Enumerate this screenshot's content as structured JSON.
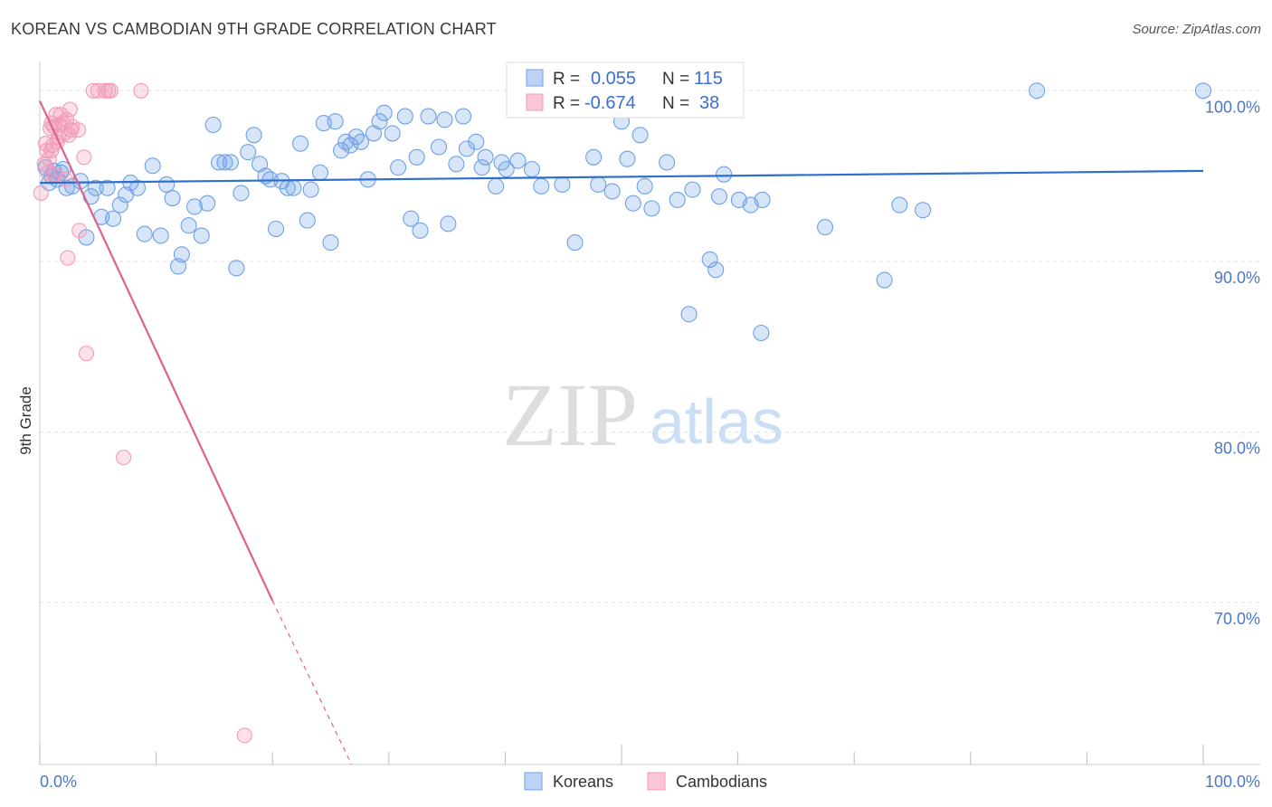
{
  "header": {
    "title": "KOREAN VS CAMBODIAN 9TH GRADE CORRELATION CHART",
    "source": "Source: ZipAtlas.com"
  },
  "watermark": {
    "part1": "ZIP",
    "part2": "atlas"
  },
  "colors": {
    "korean": "#6fa0e6",
    "korean_line": "#2f6fcc",
    "cambodian": "#f29ab8",
    "cambodian_line": "#e0608e",
    "tick_text": "#4a78c8",
    "grid": "#e3e3e3"
  },
  "stats": {
    "rows": [
      {
        "r_label": "R =",
        "r_value": "0.055",
        "n_label": "N =",
        "n_value": "115"
      },
      {
        "r_label": "R =",
        "r_value": "-0.674",
        "n_label": "N =",
        "n_value": "38"
      }
    ]
  },
  "chart_data": {
    "type": "scatter",
    "xlabel": "",
    "ylabel": "9th Grade",
    "xlim": [
      0,
      100
    ],
    "ylim": [
      60.5,
      101.5
    ],
    "x_tick_labels": [
      "0.0%",
      "100.0%"
    ],
    "y_ticks": [
      70,
      80,
      90,
      100
    ],
    "y_tick_labels": [
      "70.0%",
      "80.0%",
      "90.0%",
      "100.0%"
    ],
    "grid": true,
    "legend": {
      "position": "bottom-center",
      "entries": [
        "Koreans",
        "Cambodians"
      ]
    },
    "series": [
      {
        "name": "Koreans",
        "r": 0.055,
        "n": 115,
        "trend": {
          "x": [
            0,
            100
          ],
          "y": [
            94.6,
            95.3
          ]
        },
        "points": [
          [
            0.5,
            95.5
          ],
          [
            0.8,
            94.6
          ],
          [
            1.0,
            95.0
          ],
          [
            1.2,
            95.3
          ],
          [
            1.5,
            94.8
          ],
          [
            1.8,
            95.2
          ],
          [
            2.0,
            95.4
          ],
          [
            2.3,
            94.3
          ],
          [
            2.8,
            94.4
          ],
          [
            3.5,
            94.7
          ],
          [
            4.0,
            91.4
          ],
          [
            4.4,
            93.8
          ],
          [
            4.8,
            94.3
          ],
          [
            5.3,
            92.6
          ],
          [
            5.8,
            94.3
          ],
          [
            6.3,
            92.5
          ],
          [
            6.9,
            93.3
          ],
          [
            7.4,
            93.9
          ],
          [
            7.8,
            94.6
          ],
          [
            8.4,
            94.3
          ],
          [
            9.0,
            91.6
          ],
          [
            9.7,
            95.6
          ],
          [
            10.4,
            91.5
          ],
          [
            10.9,
            94.5
          ],
          [
            11.4,
            93.7
          ],
          [
            11.9,
            89.7
          ],
          [
            12.2,
            90.4
          ],
          [
            12.8,
            92.1
          ],
          [
            13.3,
            93.2
          ],
          [
            13.9,
            91.5
          ],
          [
            14.4,
            93.4
          ],
          [
            14.9,
            98.0
          ],
          [
            15.4,
            95.8
          ],
          [
            15.9,
            95.8
          ],
          [
            16.4,
            95.8
          ],
          [
            16.9,
            89.6
          ],
          [
            17.3,
            94.0
          ],
          [
            17.9,
            96.4
          ],
          [
            18.4,
            97.4
          ],
          [
            18.9,
            95.7
          ],
          [
            19.4,
            95.0
          ],
          [
            19.8,
            94.8
          ],
          [
            20.3,
            91.9
          ],
          [
            20.8,
            94.7
          ],
          [
            21.3,
            94.3
          ],
          [
            21.8,
            94.3
          ],
          [
            22.4,
            96.9
          ],
          [
            23.0,
            92.4
          ],
          [
            23.3,
            94.2
          ],
          [
            24.1,
            95.2
          ],
          [
            24.4,
            98.1
          ],
          [
            25.0,
            91.1
          ],
          [
            25.4,
            98.2
          ],
          [
            25.9,
            96.5
          ],
          [
            26.3,
            97.0
          ],
          [
            26.7,
            96.8
          ],
          [
            27.2,
            97.3
          ],
          [
            27.6,
            97.0
          ],
          [
            28.2,
            94.8
          ],
          [
            28.7,
            97.5
          ],
          [
            29.2,
            98.2
          ],
          [
            29.6,
            98.7
          ],
          [
            30.3,
            97.5
          ],
          [
            30.8,
            95.5
          ],
          [
            31.4,
            98.5
          ],
          [
            31.9,
            92.5
          ],
          [
            32.4,
            96.1
          ],
          [
            32.7,
            91.8
          ],
          [
            33.4,
            98.5
          ],
          [
            34.3,
            96.7
          ],
          [
            34.8,
            98.3
          ],
          [
            35.1,
            92.2
          ],
          [
            35.8,
            95.7
          ],
          [
            36.4,
            98.5
          ],
          [
            36.7,
            96.6
          ],
          [
            37.5,
            97.0
          ],
          [
            38.0,
            95.5
          ],
          [
            38.3,
            96.1
          ],
          [
            39.2,
            94.4
          ],
          [
            39.7,
            95.8
          ],
          [
            40.1,
            95.4
          ],
          [
            41.1,
            95.9
          ],
          [
            42.0,
            100.0
          ],
          [
            42.3,
            95.4
          ],
          [
            43.1,
            94.4
          ],
          [
            44.9,
            94.5
          ],
          [
            46.0,
            91.1
          ],
          [
            47.6,
            96.1
          ],
          [
            48.0,
            94.5
          ],
          [
            49.2,
            94.1
          ],
          [
            50.0,
            98.2
          ],
          [
            50.5,
            96.0
          ],
          [
            51.0,
            93.4
          ],
          [
            51.6,
            97.4
          ],
          [
            52.0,
            94.4
          ],
          [
            52.6,
            93.1
          ],
          [
            53.9,
            95.8
          ],
          [
            54.8,
            93.6
          ],
          [
            55.8,
            86.9
          ],
          [
            56.1,
            94.2
          ],
          [
            57.6,
            90.1
          ],
          [
            58.1,
            89.5
          ],
          [
            58.4,
            93.8
          ],
          [
            58.8,
            95.1
          ],
          [
            60.1,
            93.6
          ],
          [
            61.1,
            93.3
          ],
          [
            62.0,
            85.8
          ],
          [
            62.1,
            93.6
          ],
          [
            67.5,
            92.0
          ],
          [
            72.6,
            88.9
          ],
          [
            73.9,
            93.3
          ],
          [
            75.9,
            93.0
          ],
          [
            85.7,
            100.0
          ],
          [
            100.0,
            100.0
          ]
        ]
      },
      {
        "name": "Cambodians",
        "r": -0.674,
        "n": 38,
        "trend": {
          "x": [
            0,
            20
          ],
          "y": [
            99.4,
            70.1
          ]
        },
        "trend_dashed": {
          "x": [
            20,
            26.8
          ],
          "y": [
            70.1,
            60.5
          ]
        },
        "points": [
          [
            0.1,
            94.0
          ],
          [
            0.4,
            95.7
          ],
          [
            0.5,
            96.9
          ],
          [
            0.6,
            96.5
          ],
          [
            0.7,
            95.2
          ],
          [
            0.8,
            96.0
          ],
          [
            0.9,
            97.8
          ],
          [
            1.0,
            98.1
          ],
          [
            1.0,
            96.5
          ],
          [
            1.1,
            96.8
          ],
          [
            1.2,
            97.9
          ],
          [
            1.3,
            95.1
          ],
          [
            1.4,
            98.6
          ],
          [
            1.5,
            97.0
          ],
          [
            1.6,
            97.3
          ],
          [
            1.7,
            98.0
          ],
          [
            1.8,
            98.6
          ],
          [
            2.0,
            98.1
          ],
          [
            2.1,
            97.5
          ],
          [
            2.2,
            94.8
          ],
          [
            2.3,
            98.3
          ],
          [
            2.4,
            90.2
          ],
          [
            2.5,
            97.4
          ],
          [
            2.6,
            98.9
          ],
          [
            2.7,
            97.7
          ],
          [
            2.8,
            97.9
          ],
          [
            3.3,
            97.7
          ],
          [
            3.4,
            91.8
          ],
          [
            3.8,
            96.1
          ],
          [
            4.0,
            84.6
          ],
          [
            4.6,
            100.0
          ],
          [
            5.0,
            100.0
          ],
          [
            5.6,
            100.0
          ],
          [
            5.9,
            100.0
          ],
          [
            6.1,
            100.0
          ],
          [
            7.2,
            78.5
          ],
          [
            8.7,
            100.0
          ],
          [
            17.6,
            62.2
          ]
        ]
      }
    ]
  }
}
